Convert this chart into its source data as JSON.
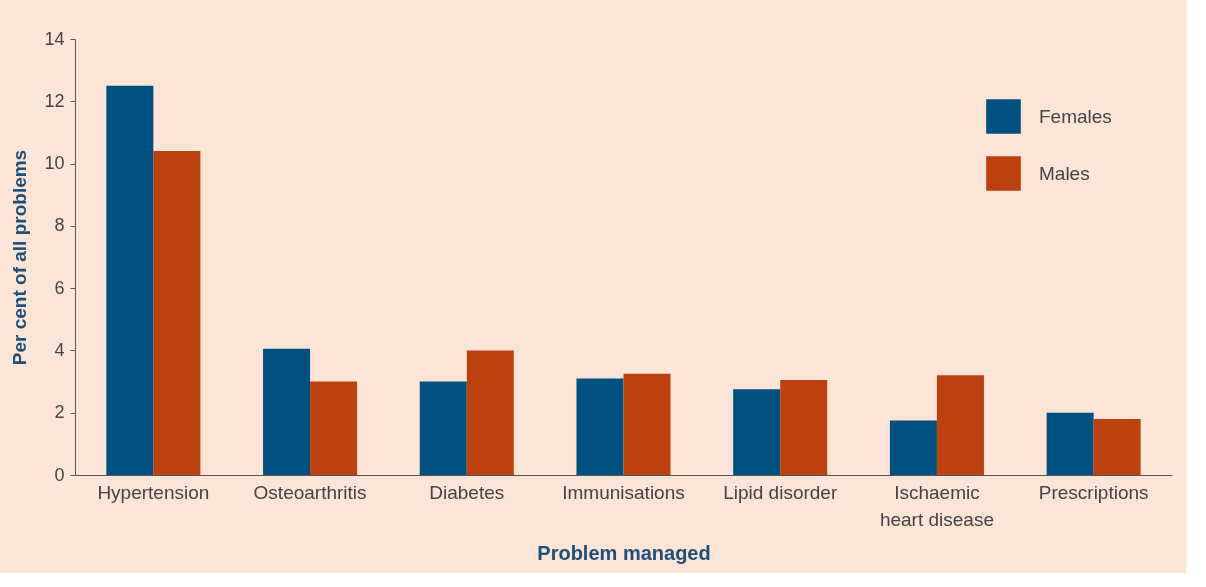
{
  "chart_data": {
    "type": "bar",
    "xlabel": "Problem managed",
    "ylabel": "Per cent of all problems",
    "categories": [
      "Hypertension",
      "Osteoarthritis",
      "Diabetes",
      "Immunisations",
      "Lipid disorder",
      "Ischaemic heart disease",
      "Prescriptions"
    ],
    "series": [
      {
        "name": "Females",
        "color": "#00517f",
        "values": [
          12.5,
          4.05,
          3.0,
          3.1,
          2.75,
          1.75,
          2.0
        ]
      },
      {
        "name": "Males",
        "color": "#bd400f",
        "values": [
          10.4,
          3.0,
          4.0,
          3.25,
          3.05,
          3.2,
          1.8
        ]
      }
    ],
    "ylim": [
      0,
      14
    ],
    "yticks": [
      0,
      2,
      4,
      6,
      8,
      10,
      12,
      14
    ],
    "grid": false,
    "legend": "top right"
  }
}
